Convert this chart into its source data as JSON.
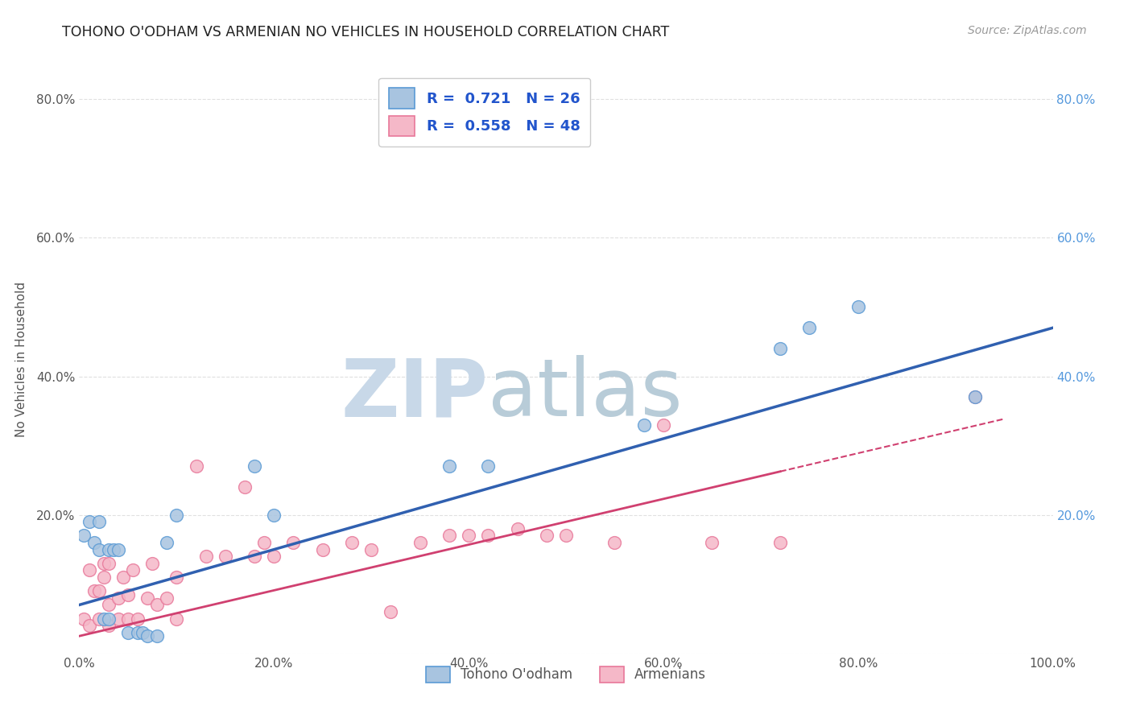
{
  "title": "TOHONO O'ODHAM VS ARMENIAN NO VEHICLES IN HOUSEHOLD CORRELATION CHART",
  "source": "Source: ZipAtlas.com",
  "ylabel": "No Vehicles in Household",
  "xlabel": "",
  "xlim": [
    0,
    1.0
  ],
  "ylim": [
    0,
    0.85
  ],
  "xticks": [
    0.0,
    0.2,
    0.4,
    0.6,
    0.8,
    1.0
  ],
  "yticks": [
    0.0,
    0.2,
    0.4,
    0.6,
    0.8
  ],
  "xticklabels": [
    "0.0%",
    "20.0%",
    "40.0%",
    "60.0%",
    "80.0%",
    "100.0%"
  ],
  "yticklabels": [
    "",
    "20.0%",
    "40.0%",
    "60.0%",
    "80.0%"
  ],
  "tohono_x": [
    0.005,
    0.01,
    0.015,
    0.02,
    0.02,
    0.025,
    0.03,
    0.03,
    0.035,
    0.04,
    0.05,
    0.06,
    0.065,
    0.07,
    0.08,
    0.09,
    0.1,
    0.18,
    0.2,
    0.38,
    0.42,
    0.58,
    0.72,
    0.75,
    0.8,
    0.92
  ],
  "tohono_y": [
    0.17,
    0.19,
    0.16,
    0.19,
    0.15,
    0.05,
    0.05,
    0.15,
    0.15,
    0.15,
    0.03,
    0.03,
    0.03,
    0.025,
    0.025,
    0.16,
    0.2,
    0.27,
    0.2,
    0.27,
    0.27,
    0.33,
    0.44,
    0.47,
    0.5,
    0.37
  ],
  "armenian_x": [
    0.005,
    0.01,
    0.01,
    0.015,
    0.02,
    0.02,
    0.025,
    0.025,
    0.03,
    0.03,
    0.03,
    0.04,
    0.04,
    0.045,
    0.05,
    0.05,
    0.055,
    0.06,
    0.07,
    0.075,
    0.08,
    0.09,
    0.1,
    0.1,
    0.12,
    0.13,
    0.15,
    0.17,
    0.18,
    0.19,
    0.2,
    0.22,
    0.25,
    0.28,
    0.3,
    0.32,
    0.35,
    0.38,
    0.4,
    0.42,
    0.45,
    0.48,
    0.5,
    0.55,
    0.6,
    0.65,
    0.72,
    0.92
  ],
  "armenian_y": [
    0.05,
    0.04,
    0.12,
    0.09,
    0.05,
    0.09,
    0.11,
    0.13,
    0.04,
    0.07,
    0.13,
    0.05,
    0.08,
    0.11,
    0.05,
    0.085,
    0.12,
    0.05,
    0.08,
    0.13,
    0.07,
    0.08,
    0.05,
    0.11,
    0.27,
    0.14,
    0.14,
    0.24,
    0.14,
    0.16,
    0.14,
    0.16,
    0.15,
    0.16,
    0.15,
    0.06,
    0.16,
    0.17,
    0.17,
    0.17,
    0.18,
    0.17,
    0.17,
    0.16,
    0.33,
    0.16,
    0.16,
    0.37
  ],
  "tohono_color": "#5b9bd5",
  "armenian_color": "#e8789a",
  "tohono_fill": "#a8c4e0",
  "armenian_fill": "#f5b8c8",
  "line_blue": "#3060b0",
  "line_pink": "#d04070",
  "background": "#ffffff",
  "grid_color": "#cccccc",
  "watermark_zip": "ZIP",
  "watermark_atlas": "atlas",
  "watermark_color_zip": "#c8d8e8",
  "watermark_color_atlas": "#b8ccd8"
}
